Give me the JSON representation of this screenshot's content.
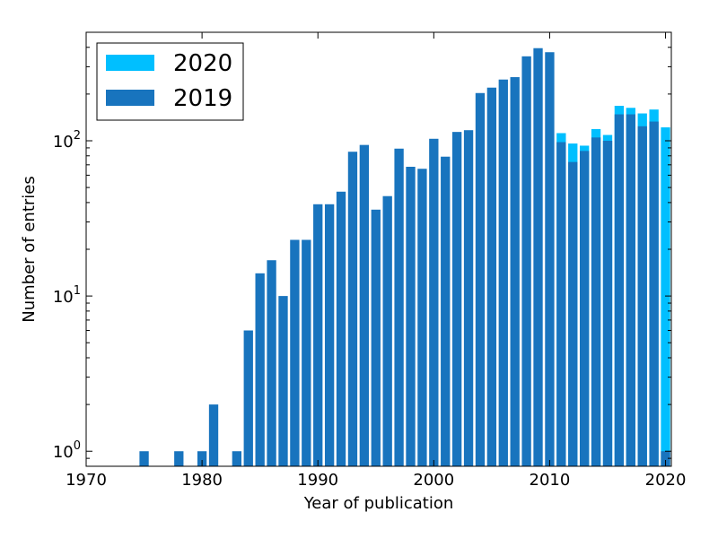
{
  "chart_data": {
    "type": "bar",
    "title": "",
    "xlabel": "Year of publication",
    "ylabel": "Number of entries",
    "y_scale": "log",
    "xlim": [
      1970,
      2020.5
    ],
    "ylim": [
      0.8,
      500
    ],
    "x_ticks": [
      "1970",
      "1980",
      "1990",
      "2000",
      "2010",
      "2020"
    ],
    "y_ticks": [
      {
        "value": 1,
        "base": "10",
        "exp": "0"
      },
      {
        "value": 10,
        "base": "10",
        "exp": "1"
      },
      {
        "value": 100,
        "base": "10",
        "exp": "2"
      }
    ],
    "legend_position": "top-left",
    "grid": false,
    "stacked": true,
    "series": [
      {
        "name": "2019",
        "color": "#1874be",
        "points": [
          [
            1975,
            1
          ],
          [
            1978,
            1
          ],
          [
            1980,
            1
          ],
          [
            1981,
            2
          ],
          [
            1983,
            1
          ],
          [
            1984,
            6
          ],
          [
            1985,
            14
          ],
          [
            1986,
            17
          ],
          [
            1987,
            10
          ],
          [
            1988,
            23
          ],
          [
            1989,
            23
          ],
          [
            1990,
            39
          ],
          [
            1991,
            39
          ],
          [
            1992,
            47
          ],
          [
            1993,
            85
          ],
          [
            1994,
            94
          ],
          [
            1995,
            36
          ],
          [
            1996,
            44
          ],
          [
            1997,
            89
          ],
          [
            1998,
            68
          ],
          [
            1999,
            66
          ],
          [
            2000,
            103
          ],
          [
            2001,
            79
          ],
          [
            2002,
            114
          ],
          [
            2003,
            117
          ],
          [
            2004,
            203
          ],
          [
            2005,
            220
          ],
          [
            2006,
            248
          ],
          [
            2007,
            257
          ],
          [
            2008,
            350
          ],
          [
            2009,
            395
          ],
          [
            2010,
            372
          ],
          [
            2011,
            98
          ],
          [
            2012,
            73
          ],
          [
            2013,
            86
          ],
          [
            2014,
            105
          ],
          [
            2015,
            100
          ],
          [
            2016,
            148
          ],
          [
            2017,
            148
          ],
          [
            2018,
            124
          ],
          [
            2019,
            133
          ],
          [
            2020,
            1
          ]
        ]
      },
      {
        "name": "2020",
        "color": "#00bfff",
        "points": [
          [
            2011,
            112
          ],
          [
            2012,
            96
          ],
          [
            2013,
            93
          ],
          [
            2014,
            119
          ],
          [
            2015,
            109
          ],
          [
            2016,
            168
          ],
          [
            2017,
            163
          ],
          [
            2018,
            150
          ],
          [
            2019,
            159
          ],
          [
            2020,
            122
          ]
        ]
      }
    ]
  }
}
